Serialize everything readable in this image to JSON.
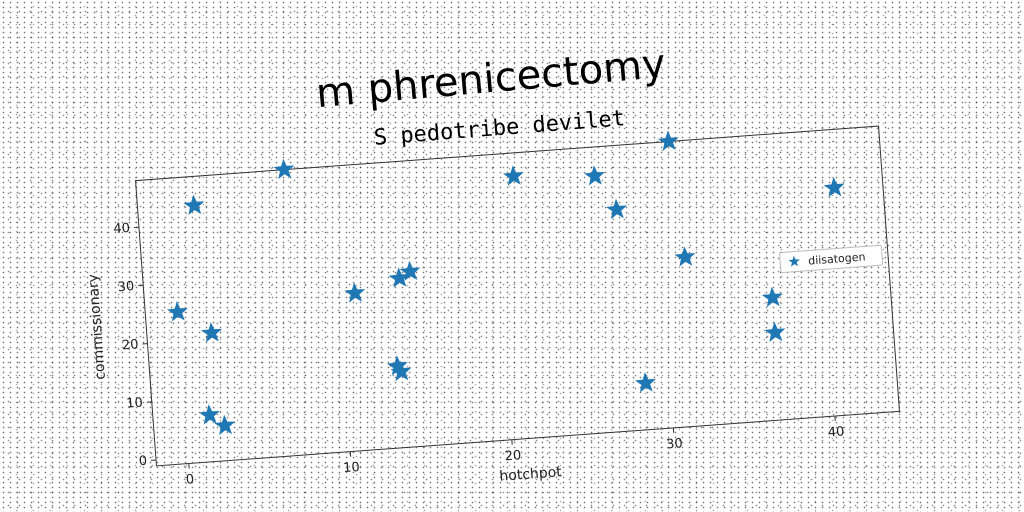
{
  "chart_data": {
    "type": "scatter",
    "title": "m phrenicectomy",
    "subtitle": "S pedotribe devilet",
    "xlabel": "hotchpot",
    "ylabel": "commissionary",
    "xlim": [
      -2,
      44
    ],
    "ylim": [
      -1,
      48
    ],
    "xticks": [
      0,
      10,
      20,
      30,
      40
    ],
    "yticks": [
      0,
      10,
      20,
      30,
      40
    ],
    "grid": false,
    "legend_position": "center-right",
    "series": [
      {
        "name": "diisatogen",
        "marker": "star",
        "color": "#1f77b4",
        "points": [
          {
            "x": 0.0,
            "y": 25
          },
          {
            "x": 1.5,
            "y": 43
          },
          {
            "x": 1.5,
            "y": 7
          },
          {
            "x": 2.0,
            "y": 21
          },
          {
            "x": 2.4,
            "y": 5
          },
          {
            "x": 7.2,
            "y": 48
          },
          {
            "x": 11.0,
            "y": 26
          },
          {
            "x": 13.3,
            "y": 13
          },
          {
            "x": 13.5,
            "y": 12
          },
          {
            "x": 13.8,
            "y": 28
          },
          {
            "x": 14.5,
            "y": 29
          },
          {
            "x": 21.3,
            "y": 44
          },
          {
            "x": 26.3,
            "y": 43
          },
          {
            "x": 27.5,
            "y": 37
          },
          {
            "x": 28.5,
            "y": 7
          },
          {
            "x": 31.0,
            "y": 48
          },
          {
            "x": 31.5,
            "y": 28
          },
          {
            "x": 36.7,
            "y": 20
          },
          {
            "x": 36.7,
            "y": 14
          },
          {
            "x": 41.0,
            "y": 38
          }
        ]
      }
    ]
  }
}
